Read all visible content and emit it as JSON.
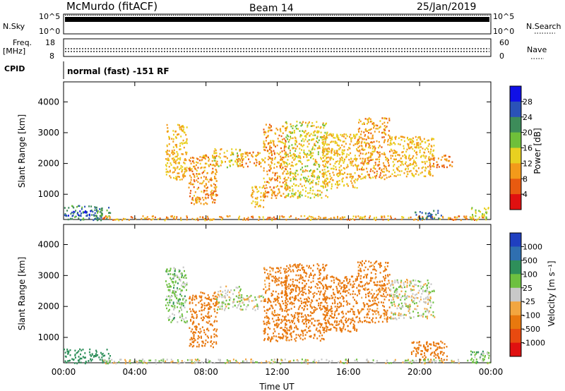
{
  "header": {
    "station": "McMurdo (fitACF)",
    "beam": "Beam 14",
    "date": "25/Jan/2019"
  },
  "top_panels": {
    "nsky": {
      "label": "N.Sky",
      "ticks": [
        "10^5",
        "10^0"
      ],
      "right_ticks": [
        "10^5",
        "10^0"
      ],
      "right_label": "N.Search"
    },
    "freq": {
      "label_line1": "Freq.",
      "label_line2": "[MHz]",
      "ticks": [
        "18",
        "8"
      ],
      "right_ticks": [
        "60",
        "0"
      ],
      "right_label": "Nave"
    },
    "cpid": {
      "label": "CPID",
      "text": "normal (fast) -151 RF"
    }
  },
  "power_colorbar": {
    "title": "Power [dB]",
    "labels": [
      "28",
      "24",
      "20",
      "16",
      "12",
      "8",
      "4"
    ],
    "colors": [
      "#1010e6",
      "#2a52b8",
      "#3d8c5a",
      "#6fbf3a",
      "#e8d020",
      "#f39a1a",
      "#e85a10",
      "#e01010"
    ]
  },
  "velocity_colorbar": {
    "title": "Velocity [m s⁻¹]",
    "labels": [
      "1000",
      "500",
      "100",
      "25",
      "-25",
      "-100",
      "-500",
      "-1000"
    ],
    "colors": [
      "#1f3fc0",
      "#2f6fb0",
      "#2e8f5a",
      "#6dc040",
      "#c8c8c8",
      "#f2a640",
      "#e8780e",
      "#e84a10",
      "#e01010"
    ]
  },
  "chart_data": [
    {
      "type": "heatmap",
      "title": "",
      "xlabel": "",
      "ylabel": "Slant Range [km]",
      "x_ticks": [
        "00:00",
        "04:00",
        "08:00",
        "12:00",
        "16:00",
        "20:00",
        "00:00"
      ],
      "y_ticks": [
        "1000",
        "2000",
        "3000",
        "4000"
      ],
      "xlim": [
        0,
        24
      ],
      "ylim": [
        180,
        4650
      ],
      "colorbar": "Power [dB]",
      "regions": [
        {
          "t": [
            0.0,
            2.6
          ],
          "r": [
            180,
            650
          ],
          "v": 22
        },
        {
          "t": [
            0.0,
            1.6
          ],
          "r": [
            300,
            480
          ],
          "v": 28
        },
        {
          "t": [
            2.0,
            23.8
          ],
          "r": [
            180,
            320
          ],
          "v": 10
        },
        {
          "t": [
            5.7,
            6.9
          ],
          "r": [
            1500,
            3300
          ],
          "v": 12
        },
        {
          "t": [
            7.0,
            8.6
          ],
          "r": [
            700,
            2300
          ],
          "v": 10
        },
        {
          "t": [
            8.3,
            10.0
          ],
          "r": [
            1900,
            2500
          ],
          "v": 14
        },
        {
          "t": [
            9.7,
            11.2
          ],
          "r": [
            1900,
            2400
          ],
          "v": 10
        },
        {
          "t": [
            10.5,
            11.3
          ],
          "r": [
            600,
            1300
          ],
          "v": 12
        },
        {
          "t": [
            11.2,
            12.5
          ],
          "r": [
            900,
            3300
          ],
          "v": 10
        },
        {
          "t": [
            12.4,
            14.8
          ],
          "r": [
            900,
            3400
          ],
          "v": 14
        },
        {
          "t": [
            14.5,
            16.5
          ],
          "r": [
            1200,
            3000
          ],
          "v": 12
        },
        {
          "t": [
            16.5,
            18.3
          ],
          "r": [
            1500,
            3500
          ],
          "v": 10
        },
        {
          "t": [
            18.3,
            20.8
          ],
          "r": [
            1600,
            2900
          ],
          "v": 12
        },
        {
          "t": [
            20.5,
            21.8
          ],
          "r": [
            1900,
            2300
          ],
          "v": 8
        },
        {
          "t": [
            19.7,
            21.2
          ],
          "r": [
            200,
            500
          ],
          "v": 24
        },
        {
          "t": [
            22.8,
            23.9
          ],
          "r": [
            200,
            600
          ],
          "v": 16
        }
      ]
    },
    {
      "type": "heatmap",
      "title": "",
      "xlabel": "Time UT",
      "ylabel": "Slant Range [km]",
      "x_ticks": [
        "00:00",
        "04:00",
        "08:00",
        "12:00",
        "16:00",
        "20:00",
        "00:00"
      ],
      "y_ticks": [
        "1000",
        "2000",
        "3000",
        "4000"
      ],
      "xlim": [
        0,
        24
      ],
      "ylim": [
        180,
        4650
      ],
      "colorbar": "Velocity [m s⁻¹]",
      "regions": [
        {
          "t": [
            0.0,
            2.6
          ],
          "r": [
            180,
            650
          ],
          "v": 300
        },
        {
          "t": [
            2.0,
            23.8
          ],
          "r": [
            180,
            320
          ],
          "v": 0
        },
        {
          "t": [
            5.7,
            6.9
          ],
          "r": [
            1500,
            3300
          ],
          "v": 50
        },
        {
          "t": [
            7.0,
            8.6
          ],
          "r": [
            700,
            2500
          ],
          "v": -200
        },
        {
          "t": [
            8.5,
            10.0
          ],
          "r": [
            1900,
            2700
          ],
          "v": 0
        },
        {
          "t": [
            9.7,
            11.2
          ],
          "r": [
            1900,
            2400
          ],
          "v": 0
        },
        {
          "t": [
            11.2,
            12.5
          ],
          "r": [
            900,
            3300
          ],
          "v": -150
        },
        {
          "t": [
            12.4,
            14.8
          ],
          "r": [
            900,
            3400
          ],
          "v": -300
        },
        {
          "t": [
            14.5,
            16.5
          ],
          "r": [
            1200,
            3000
          ],
          "v": -200
        },
        {
          "t": [
            16.5,
            18.3
          ],
          "r": [
            1500,
            3500
          ],
          "v": -150
        },
        {
          "t": [
            18.3,
            20.8
          ],
          "r": [
            1600,
            2900
          ],
          "v": 0
        },
        {
          "t": [
            19.5,
            21.5
          ],
          "r": [
            300,
            900
          ],
          "v": -200
        },
        {
          "t": [
            22.8,
            23.9
          ],
          "r": [
            200,
            600
          ],
          "v": 60
        }
      ]
    }
  ]
}
